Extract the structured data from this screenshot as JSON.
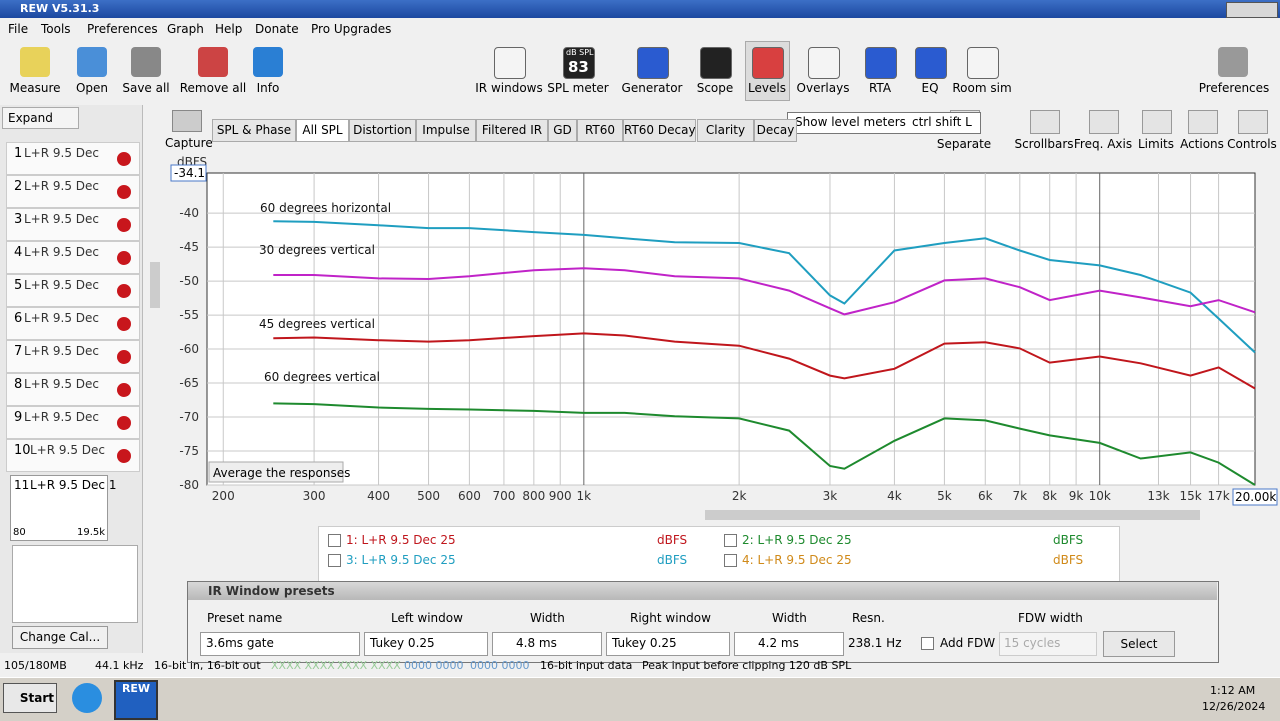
{
  "window": {
    "title": "REW V5.31.3"
  },
  "menu": [
    "File",
    "Tools",
    "Preferences",
    "Graph",
    "Help",
    "Donate",
    "Pro Upgrades"
  ],
  "toolbar_left": [
    "Measure",
    "Open",
    "Save all",
    "Remove all",
    "Info"
  ],
  "toolbar_center": [
    "IR windows",
    "SPL meter",
    "Generator",
    "Scope",
    "Levels",
    "Overlays",
    "RTA",
    "EQ",
    "Room sim"
  ],
  "spl_badge": {
    "unit": "dB SPL",
    "value": "83"
  },
  "preferences": "Preferences",
  "graph_tools": [
    "Separate",
    "Scrollbars",
    "Freq. Axis",
    "Limits",
    "Actions",
    "Controls"
  ],
  "capture": "Capture",
  "expand": "Expand",
  "measurements": [
    {
      "number": "1",
      "label": "L+R 9.5 Dec"
    },
    {
      "number": "2",
      "label": "L+R 9.5 Dec"
    },
    {
      "number": "3",
      "label": "L+R 9.5 Dec"
    },
    {
      "number": "4",
      "label": "L+R 9.5 Dec"
    },
    {
      "number": "5",
      "label": "L+R 9.5 Dec"
    },
    {
      "number": "6",
      "label": "L+R 9.5 Dec"
    },
    {
      "number": "7",
      "label": "L+R 9.5 Dec"
    },
    {
      "number": "8",
      "label": "L+R 9.5 Dec"
    },
    {
      "number": "9",
      "label": "L+R 9.5 Dec"
    },
    {
      "number": "10",
      "label": "L+R 9.5 Dec"
    },
    {
      "number": "11",
      "label": "L+R 9.5 Dec 1"
    }
  ],
  "thumb_range": [
    "80",
    "19.5k"
  ],
  "change_cal": "Change Cal...",
  "tabs": [
    "SPL & Phase",
    "All SPL",
    "Distortion",
    "Impulse",
    "Filtered IR",
    "GD",
    "RT60",
    "RT60 Decay",
    "Clarity",
    "Decay"
  ],
  "tooltip": {
    "text": "Show level meters",
    "shortcut": "ctrl shift L"
  },
  "chart_data": {
    "type": "line",
    "y_unit": "dBFS",
    "x_readout": "20.00k",
    "button": "Average the responses",
    "xscale": "log",
    "grid": true,
    "xlim": [
      186,
      20000
    ],
    "ylim": [
      -80,
      -34.1
    ],
    "yticks": [
      -40,
      -45,
      -50,
      -55,
      -60,
      -65,
      -70,
      -75,
      -80
    ],
    "xticks": [
      200,
      300,
      400,
      500,
      600,
      700,
      800,
      900,
      {
        "value": 1000,
        "label": "1k"
      },
      {
        "value": 2000,
        "label": "2k"
      },
      {
        "value": 3000,
        "label": "3k"
      },
      {
        "value": 4000,
        "label": "4k"
      },
      {
        "value": 5000,
        "label": "5k"
      },
      {
        "value": 6000,
        "label": "6k"
      },
      {
        "value": 7000,
        "label": "7k"
      },
      {
        "value": 8000,
        "label": "8k"
      },
      {
        "value": 9000,
        "label": "9k"
      },
      {
        "value": 10000,
        "label": "10k"
      },
      {
        "value": 13000,
        "label": "13k"
      },
      {
        "value": 15000,
        "label": "15k"
      },
      {
        "value": 17000,
        "label": "17k"
      }
    ],
    "x": [
      250,
      300,
      400,
      500,
      600,
      800,
      1000,
      1200,
      1500,
      2000,
      2500,
      3000,
      3200,
      4000,
      5000,
      6000,
      7000,
      8000,
      10000,
      12000,
      15000,
      17000,
      20000
    ],
    "series": [
      {
        "name": "60 degrees horizontal",
        "color": "#1f9ec0",
        "values": [
          -41.2,
          -41.3,
          -41.8,
          -42.2,
          -42.2,
          -42.8,
          -43.2,
          -43.7,
          -44.3,
          -44.4,
          -45.9,
          -52.1,
          -53.3,
          -45.5,
          -44.4,
          -43.7,
          -45.5,
          -46.9,
          -47.7,
          -49.1,
          -51.7,
          -55.5,
          -60.5
        ]
      },
      {
        "name": "30 degrees vertical",
        "color": "#c023c8",
        "values": [
          -49.1,
          -49.1,
          -49.6,
          -49.7,
          -49.3,
          -48.4,
          -48.1,
          -48.4,
          -49.3,
          -49.6,
          -51.4,
          -54.0,
          -54.9,
          -53.1,
          -49.9,
          -49.6,
          -50.9,
          -52.8,
          -51.4,
          -52.4,
          -53.7,
          -52.8,
          -54.6
        ]
      },
      {
        "name": "45 degrees vertical",
        "color": "#c0161c",
        "values": [
          -58.4,
          -58.3,
          -58.7,
          -58.9,
          -58.7,
          -58.1,
          -57.7,
          -58.0,
          -58.9,
          -59.5,
          -61.4,
          -63.9,
          -64.3,
          -62.9,
          -59.2,
          -59.0,
          -59.9,
          -62.0,
          -61.1,
          -62.1,
          -63.9,
          -62.7,
          -65.8
        ]
      },
      {
        "name": "60 degrees vertical",
        "color": "#1e8a2e",
        "values": [
          -68.0,
          -68.1,
          -68.6,
          -68.8,
          -68.9,
          -69.1,
          -69.4,
          -69.4,
          -69.9,
          -70.2,
          -72.0,
          -77.2,
          -77.6,
          -73.5,
          -70.2,
          -70.5,
          -71.7,
          -72.7,
          -73.8,
          -76.1,
          -75.2,
          -76.7,
          -80.0
        ]
      }
    ]
  },
  "legend_list": [
    {
      "label": "1: L+R 9.5 Dec 25",
      "unit": "dBFS",
      "color": "#c0161c"
    },
    {
      "label": "2: L+R 9.5 Dec 25",
      "unit": "dBFS",
      "color": "#1e8a2e"
    },
    {
      "label": "3: L+R 9.5 Dec 25",
      "unit": "dBFS",
      "color": "#1f9ec0"
    },
    {
      "label": "4: L+R 9.5 Dec 25",
      "unit": "dBFS",
      "color": "#d08a1a"
    }
  ],
  "dialog": {
    "title": "IR Window presets",
    "labels": [
      "Preset name",
      "Left window",
      "Width",
      "Right window",
      "Width",
      "Resn.",
      "FDW width"
    ],
    "preset_name": "3.6ms gate",
    "left_window": "Tukey 0.25",
    "left_width": "4.8 ms",
    "right_window": "Tukey 0.25",
    "right_width": "4.2 ms",
    "resolution": "238.1 Hz",
    "add_fdw": "Add FDW",
    "fdw_width": "15 cycles",
    "select": "Select"
  },
  "status": [
    "105/180MB",
    "44.1 kHz",
    "16-bit in, 16-bit out",
    "XXXX XXXX",
    "XXXX XXXX",
    "0000 0000",
    "0000 0000",
    "16-bit input data",
    "Peak input before clipping 120 dB SPL"
  ],
  "taskbar": {
    "start": "Start",
    "app": "REW",
    "time": "1:12 AM",
    "date": "12/26/2024"
  }
}
